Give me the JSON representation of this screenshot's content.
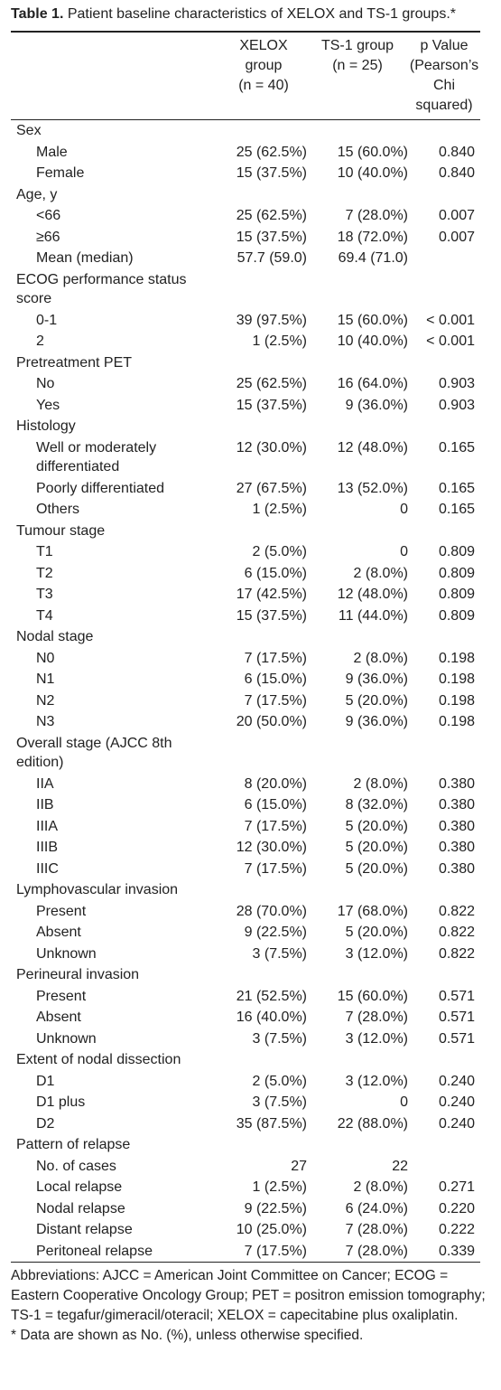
{
  "title": {
    "label": "Table 1.",
    "text": "Patient baseline characteristics of XELOX and TS-1 groups.*"
  },
  "columns": [
    [
      "XELOX",
      "group",
      "(n = 40)"
    ],
    [
      "TS-1 group",
      "(n = 25)"
    ],
    [
      "p Value",
      "(Pearson’s",
      "Chi",
      "squared)"
    ]
  ],
  "sections": [
    {
      "label": "Sex",
      "rows": [
        [
          "Male",
          "25 (62.5%)",
          "15 (60.0%)",
          "0.840"
        ],
        [
          "Female",
          "15 (37.5%)",
          "10 (40.0%)",
          "0.840"
        ]
      ]
    },
    {
      "label": "Age, y",
      "rows": [
        [
          "<66",
          "25 (62.5%)",
          "7 (28.0%)",
          "0.007"
        ],
        [
          "≥66",
          "15 (37.5%)",
          "18 (72.0%)",
          "0.007"
        ],
        [
          "Mean (median)",
          "57.7 (59.0)",
          "69.4 (71.0)",
          null
        ]
      ]
    },
    {
      "label": "ECOG performance status score",
      "rows": [
        [
          "0-1",
          "39 (97.5%)",
          "15 (60.0%)",
          "< 0.001"
        ],
        [
          "2",
          "1 (2.5%)",
          "10 (40.0%)",
          "< 0.001"
        ]
      ]
    },
    {
      "label": "Pretreatment PET",
      "rows": [
        [
          "No",
          "25 (62.5%)",
          "16 (64.0%)",
          "0.903"
        ],
        [
          "Yes",
          "15 (37.5%)",
          "9 (36.0%)",
          "0.903"
        ]
      ]
    },
    {
      "label": "Histology",
      "rows": [
        [
          "Well or moderately differentiated",
          "12 (30.0%)",
          "12 (48.0%)",
          "0.165"
        ],
        [
          "Poorly differentiated",
          "27 (67.5%)",
          "13 (52.0%)",
          "0.165"
        ],
        [
          "Others",
          "1 (2.5%)",
          "0",
          "0.165"
        ]
      ]
    },
    {
      "label": "Tumour stage",
      "rows": [
        [
          "T1",
          "2 (5.0%)",
          "0",
          "0.809"
        ],
        [
          "T2",
          "6 (15.0%)",
          "2 (8.0%)",
          "0.809"
        ],
        [
          "T3",
          "17 (42.5%)",
          "12 (48.0%)",
          "0.809"
        ],
        [
          "T4",
          "15 (37.5%)",
          "11 (44.0%)",
          "0.809"
        ]
      ]
    },
    {
      "label": "Nodal stage",
      "rows": [
        [
          "N0",
          "7 (17.5%)",
          "2 (8.0%)",
          "0.198"
        ],
        [
          "N1",
          "6 (15.0%)",
          "9 (36.0%)",
          "0.198"
        ],
        [
          "N2",
          "7 (17.5%)",
          "5 (20.0%)",
          "0.198"
        ],
        [
          "N3",
          "20 (50.0%)",
          "9 (36.0%)",
          "0.198"
        ]
      ]
    },
    {
      "label": "Overall stage (AJCC 8th edition)",
      "rows": [
        [
          "IIA",
          "8 (20.0%)",
          "2 (8.0%)",
          "0.380"
        ],
        [
          "IIB",
          "6 (15.0%)",
          "8 (32.0%)",
          "0.380"
        ],
        [
          "IIIA",
          "7 (17.5%)",
          "5 (20.0%)",
          "0.380"
        ],
        [
          "IIIB",
          "12 (30.0%)",
          "5 (20.0%)",
          "0.380"
        ],
        [
          "IIIC",
          "7 (17.5%)",
          "5 (20.0%)",
          "0.380"
        ]
      ]
    },
    {
      "label": "Lymphovascular invasion",
      "rows": [
        [
          "Present",
          "28 (70.0%)",
          "17 (68.0%)",
          "0.822"
        ],
        [
          "Absent",
          "9 (22.5%)",
          "5 (20.0%)",
          "0.822"
        ],
        [
          "Unknown",
          "3 (7.5%)",
          "3 (12.0%)",
          "0.822"
        ]
      ]
    },
    {
      "label": "Perineural invasion",
      "rows": [
        [
          "Present",
          "21 (52.5%)",
          "15 (60.0%)",
          "0.571"
        ],
        [
          "Absent",
          "16 (40.0%)",
          "7 (28.0%)",
          "0.571"
        ],
        [
          "Unknown",
          "3 (7.5%)",
          "3 (12.0%)",
          "0.571"
        ]
      ]
    },
    {
      "label": "Extent of nodal dissection",
      "rows": [
        [
          "D1",
          "2 (5.0%)",
          "3 (12.0%)",
          "0.240"
        ],
        [
          "D1 plus",
          "3 (7.5%)",
          "0",
          "0.240"
        ],
        [
          "D2",
          "35 (87.5%)",
          "22 (88.0%)",
          "0.240"
        ]
      ]
    },
    {
      "label": "Pattern of relapse",
      "rows": [
        [
          "No. of cases",
          "27",
          "22",
          null
        ],
        [
          "Local relapse",
          "1 (2.5%)",
          "2 (8.0%)",
          "0.271"
        ],
        [
          "Nodal relapse",
          "9 (22.5%)",
          "6 (24.0%)",
          "0.220"
        ],
        [
          "Distant relapse",
          "10 (25.0%)",
          "7 (28.0%)",
          "0.222"
        ],
        [
          "Peritoneal relapse",
          "7 (17.5%)",
          "7 (28.0%)",
          "0.339"
        ]
      ]
    }
  ],
  "footnotes": [
    "Abbreviations: AJCC = American Joint Committee on Cancer; ECOG = Eastern Cooperative Oncology Group; PET = positron emission tomography; TS-1 = tegafur/gimeracil/oteracil; XELOX = capecitabine plus oxaliplatin.",
    "* Data are shown as No. (%), unless otherwise specified."
  ]
}
